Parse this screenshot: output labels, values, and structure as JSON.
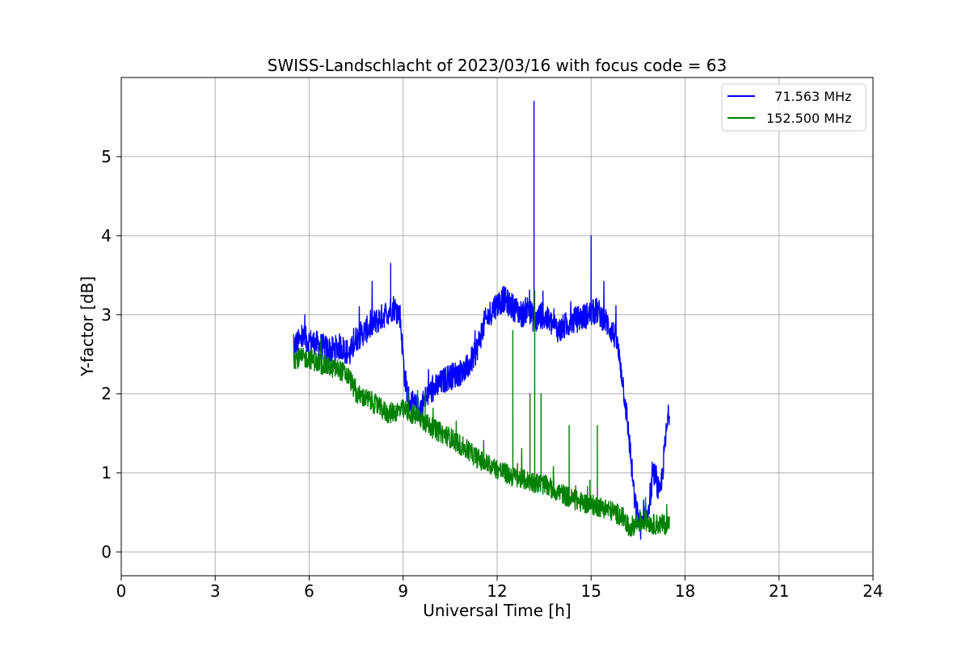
{
  "chart_data": {
    "type": "line",
    "title": "SWISS-Landschlacht of 2023/03/16 with focus code = 63",
    "xlabel": "Universal Time [h]",
    "ylabel": "Y-factor [dB]",
    "xlim": [
      0,
      24
    ],
    "ylim": [
      -0.3,
      6.0
    ],
    "xticks": [
      0,
      3,
      6,
      9,
      12,
      15,
      18,
      21,
      24
    ],
    "yticks": [
      0,
      1,
      2,
      3,
      4,
      5
    ],
    "grid": true,
    "legend_position": "top-right",
    "series": [
      {
        "name": "  71.563 MHz",
        "color": "#0000ff",
        "x": [
          5.5,
          5.8,
          6.1,
          6.4,
          6.7,
          7.0,
          7.3,
          7.5,
          7.8,
          8.1,
          8.4,
          8.7,
          8.9,
          9.05,
          9.2,
          9.5,
          9.8,
          10.1,
          10.4,
          10.7,
          11.0,
          11.3,
          11.6,
          11.9,
          12.2,
          12.5,
          12.8,
          13.0,
          13.2,
          13.4,
          13.7,
          14.0,
          14.3,
          14.6,
          14.9,
          15.2,
          15.5,
          15.8,
          16.0,
          16.2,
          16.4,
          16.6,
          16.8,
          17.0,
          17.2,
          17.4,
          17.5
        ],
        "y": [
          2.6,
          2.7,
          2.65,
          2.6,
          2.55,
          2.6,
          2.5,
          2.7,
          2.8,
          2.9,
          3.0,
          3.1,
          3.0,
          2.2,
          1.9,
          1.8,
          2.0,
          2.1,
          2.2,
          2.25,
          2.3,
          2.5,
          2.9,
          3.1,
          3.2,
          3.1,
          3.0,
          3.1,
          2.9,
          3.0,
          2.9,
          2.8,
          2.9,
          2.95,
          3.0,
          3.05,
          2.9,
          2.7,
          2.2,
          1.5,
          0.6,
          0.3,
          0.5,
          1.0,
          0.7,
          1.5,
          1.8
        ],
        "noise": 0.17,
        "spikes": [
          [
            13.18,
            5.7
          ],
          [
            15.0,
            4.0
          ],
          [
            8.6,
            3.65
          ]
        ]
      },
      {
        "name": "152.500 MHz",
        "color": "#008000",
        "x": [
          5.5,
          6.0,
          6.5,
          7.0,
          7.3,
          7.5,
          8.0,
          8.5,
          9.0,
          9.5,
          10.0,
          10.5,
          11.0,
          11.5,
          12.0,
          12.5,
          13.0,
          13.5,
          14.0,
          14.5,
          15.0,
          15.5,
          16.0,
          16.2,
          16.4,
          16.7,
          17.0,
          17.3,
          17.5
        ],
        "y": [
          2.45,
          2.45,
          2.35,
          2.3,
          2.2,
          2.0,
          1.9,
          1.75,
          1.8,
          1.7,
          1.55,
          1.45,
          1.3,
          1.15,
          1.05,
          0.95,
          0.9,
          0.85,
          0.75,
          0.65,
          0.6,
          0.55,
          0.45,
          0.3,
          0.35,
          0.4,
          0.35,
          0.35,
          0.35
        ],
        "noise": 0.13,
        "spikes": [
          [
            12.5,
            2.8
          ],
          [
            13.05,
            2.0
          ],
          [
            13.2,
            3.3
          ],
          [
            13.4,
            2.0
          ],
          [
            14.3,
            1.6
          ],
          [
            15.2,
            1.6
          ],
          [
            9.7,
            2.0
          ]
        ]
      }
    ]
  }
}
